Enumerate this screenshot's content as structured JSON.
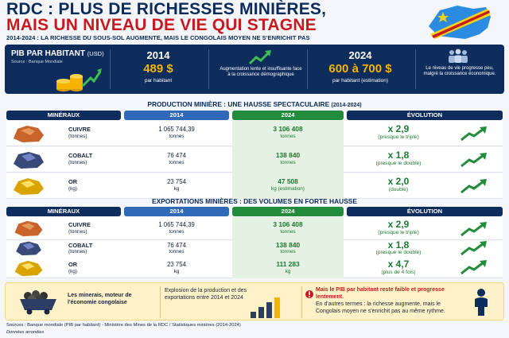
{
  "header": {
    "title_line1": "RDC : PLUS DE RICHESSES MINIÈRES,",
    "title_line2": "MAIS UN NIVEAU DE VIE QUI STAGNE",
    "subtitle": "2014-2024 : LA RICHESSE DU SOUS-SOL AUGMENTE, MAIS LE CONGOLAIS MOYEN NE S'ENRICHIT PAS"
  },
  "pib": {
    "title": "PIB PAR HABITANT",
    "title_unit": "(USD)",
    "source": "Source : Banque Mondiale",
    "year_2014": "2014",
    "value_2014": "489 $",
    "label_2014": "par habitant",
    "growth_note": "Augmentation lente et insuffisante face à la croissance démographique",
    "year_2024": "2024",
    "value_2024": "600 à 700 $",
    "label_2024": "par habitant (estimation)",
    "people_note": "Le niveau de vie progresse peu, malgré la croissance économique."
  },
  "production": {
    "heading": "PRODUCTION MINIÈRE : UNE HAUSSE SPECTACULAIRE",
    "heading_years": "(2014-2024)",
    "columns": [
      "MINÉRAUX",
      "2014",
      "2024",
      "ÉVOLUTION"
    ],
    "rows": [
      {
        "name": "CUIVRE",
        "unit": "(tonnes)",
        "v2014": "1 065 744,39",
        "u2014": "tonnes",
        "v2024": "3 106 408",
        "u2024": "tonnes",
        "evo": "x 2,9",
        "evo_note": "(presque le triple)"
      },
      {
        "name": "COBALT",
        "unit": "(tonnes)",
        "v2014": "76 474",
        "u2014": "tonnes",
        "v2024": "138 840",
        "u2024": "tonnes",
        "evo": "x 1,8",
        "evo_note": "(presque le double)"
      },
      {
        "name": "OR",
        "unit": "(kg)",
        "v2014": "23 754",
        "u2014": "kg",
        "v2024": "47 508",
        "u2024": "kg (estimation)",
        "evo": "x 2,0",
        "evo_note": "(double)"
      }
    ]
  },
  "exports": {
    "heading": "EXPORTATIONS MINIÈRES : DES VOLUMES EN FORTE HAUSSE",
    "columns": [
      "MINÉRAUX",
      "2014",
      "2024",
      "ÉVOLUTION"
    ],
    "rows": [
      {
        "name": "CUIVRE",
        "unit": "(tonnes)",
        "v2014": "1 065 744,39",
        "u2014": "tonnes",
        "v2024": "3 106 408",
        "u2024": "tonnes",
        "evo": "x 2,9",
        "evo_note": "(presque le triple)"
      },
      {
        "name": "COBALT",
        "unit": "(tonnes)",
        "v2014": "76 474",
        "u2014": "tonnes",
        "v2024": "138 840",
        "u2024": "tonnes",
        "evo": "x 1,8",
        "evo_note": "(presque le double)"
      },
      {
        "name": "OR",
        "unit": "(kg)",
        "v2014": "23 754",
        "u2014": "kg",
        "v2024": "111 283",
        "u2024": "kg",
        "evo": "x 4,7",
        "evo_note": "(plus de 4 fois)"
      }
    ]
  },
  "bottom": {
    "minerals_note": "Les minerais, moteur de l'économie congolaise",
    "explosion_note": "Explosion de la production et des exportations entre 2014 et 2024",
    "pib_red": "Mais le PIB par habitant reste faible et progresse lentement.",
    "pib_black": "En d'autres termes : la richesse augmente, mais le Congolais moyen ne s'enrichit pas au même rythme."
  },
  "sources": {
    "line1": "Sources : Banque mondiale (PIB par habitant) - Ministère des Mines de la RDC / Statistiques minières (2014-2024)",
    "line2": "Données arrondies"
  },
  "colors": {
    "navy": "#0e2c5c",
    "red": "#c8191e",
    "green": "#238c3c",
    "blue": "#2f69b8",
    "gold": "#f5b400"
  }
}
